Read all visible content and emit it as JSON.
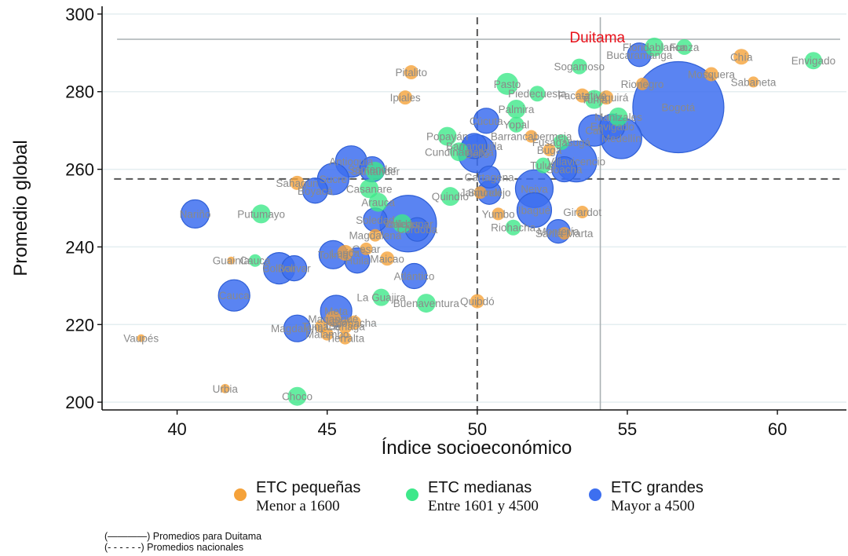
{
  "chart_data": {
    "type": "scatter",
    "title": "",
    "xlabel": "Índice socioeconómico",
    "ylabel": "Promedio global",
    "xlim": [
      37.5,
      62.3
    ],
    "ylim": [
      198,
      302
    ],
    "xticks": [
      "40",
      "45",
      "50",
      "55",
      "60"
    ],
    "yticks": [
      "200",
      "220",
      "240",
      "260",
      "280",
      "300"
    ],
    "grid": "horizontal",
    "reference_lines": {
      "duitama_x": 54.1,
      "duitama_y": 293.5,
      "national_x": 50.0,
      "national_y": 257.5
    },
    "highlight_label": {
      "text": "Duitama",
      "x": 54.0,
      "y": 293.5
    },
    "category_colors": {
      "small": "#f5a23a",
      "medium": "#3ee88a",
      "large": "#3d6ff0"
    },
    "points": [
      {
        "label": "Vaupés",
        "x": 38.8,
        "y": 216.5,
        "cat": "small",
        "r": 5
      },
      {
        "label": "Urbia",
        "x": 41.6,
        "y": 203.5,
        "cat": "small",
        "r": 6
      },
      {
        "label": "Guainía",
        "x": 41.8,
        "y": 236.5,
        "cat": "small",
        "r": 5
      },
      {
        "label": "Cauca",
        "x": 42.6,
        "y": 236.5,
        "cat": "medium",
        "r": 8
      },
      {
        "label": "Putumayo",
        "x": 42.8,
        "y": 248.5,
        "cat": "medium",
        "r": 12
      },
      {
        "label": "Choco",
        "x": 44.0,
        "y": 201.5,
        "cat": "medium",
        "r": 12
      },
      {
        "label": "Sahagún",
        "x": 44.0,
        "y": 256.5,
        "cat": "small",
        "r": 9
      },
      {
        "label": "Lorica",
        "x": 45.6,
        "y": 238.5,
        "cat": "small",
        "r": 10
      },
      {
        "label": "Magangué",
        "x": 45.2,
        "y": 221.5,
        "cat": "small",
        "r": 10
      },
      {
        "label": "Tumaco",
        "x": 44.8,
        "y": 219.5,
        "cat": "small",
        "r": 8
      },
      {
        "label": "Tierralta",
        "x": 45.6,
        "y": 216.5,
        "cat": "small",
        "r": 8
      },
      {
        "label": "Pitalito",
        "x": 47.8,
        "y": 285.0,
        "cat": "small",
        "r": 9
      },
      {
        "label": "Ipiales",
        "x": 47.6,
        "y": 278.5,
        "cat": "small",
        "r": 9
      },
      {
        "label": "Maicao",
        "x": 47.0,
        "y": 237.0,
        "cat": "small",
        "r": 9
      },
      {
        "label": "Magdalena",
        "x": 46.6,
        "y": 243.0,
        "cat": "small",
        "r": 8
      },
      {
        "label": "Cesar",
        "x": 46.3,
        "y": 239.5,
        "cat": "small",
        "r": 8
      },
      {
        "label": "Ciénaga",
        "x": 45.6,
        "y": 219.5,
        "cat": "small",
        "r": 9
      },
      {
        "label": "Riohacha",
        "x": 45.9,
        "y": 220.5,
        "cat": "small",
        "r": 9
      },
      {
        "label": "Buenaventura",
        "x": 48.3,
        "y": 225.5,
        "cat": "medium",
        "r": 12
      },
      {
        "label": "La Guajira",
        "x": 46.8,
        "y": 227.0,
        "cat": "medium",
        "r": 11
      },
      {
        "label": "Quibdó",
        "x": 50.0,
        "y": 226.0,
        "cat": "small",
        "r": 9
      },
      {
        "label": "Malambo",
        "x": 45.0,
        "y": 217.5,
        "cat": "small",
        "r": 8
      },
      {
        "label": "Casanare",
        "x": 46.4,
        "y": 255.0,
        "cat": "medium",
        "r": 12
      },
      {
        "label": "Santander",
        "x": 46.6,
        "y": 259.5,
        "cat": "medium",
        "r": 12
      },
      {
        "label": "Arauca",
        "x": 46.7,
        "y": 251.5,
        "cat": "medium",
        "r": 12
      },
      {
        "label": "Quindío",
        "x": 49.1,
        "y": 253.0,
        "cat": "medium",
        "r": 12
      },
      {
        "label": "Popayán",
        "x": 49.0,
        "y": 268.5,
        "cat": "medium",
        "r": 12
      },
      {
        "label": "Cundinamarca",
        "x": 49.4,
        "y": 264.5,
        "cat": "medium",
        "r": 12
      },
      {
        "label": "Caldas",
        "x": 47.5,
        "y": 246.0,
        "cat": "medium",
        "r": 12
      },
      {
        "label": "Yumbo",
        "x": 50.7,
        "y": 248.5,
        "cat": "small",
        "r": 8
      },
      {
        "label": "Jamundí",
        "x": 50.1,
        "y": 254.0,
        "cat": "small",
        "r": 8
      },
      {
        "label": "Riohacha",
        "x": 51.2,
        "y": 245.0,
        "cat": "medium",
        "r": 10
      },
      {
        "label": "Santa Marta",
        "x": 52.9,
        "y": 243.5,
        "cat": "small",
        "r": 8
      },
      {
        "label": "Girardot",
        "x": 53.5,
        "y": 249.0,
        "cat": "small",
        "r": 8
      },
      {
        "label": "Tuluá",
        "x": 52.2,
        "y": 261.0,
        "cat": "medium",
        "r": 10
      },
      {
        "label": "Buga",
        "x": 52.4,
        "y": 265.0,
        "cat": "small",
        "r": 8
      },
      {
        "label": "Barrancabermeja",
        "x": 51.8,
        "y": 268.5,
        "cat": "small",
        "r": 8
      },
      {
        "label": "Yopal",
        "x": 51.3,
        "y": 271.5,
        "cat": "medium",
        "r": 10
      },
      {
        "label": "Palmira",
        "x": 51.3,
        "y": 275.5,
        "cat": "medium",
        "r": 12
      },
      {
        "label": "Fusagasugá",
        "x": 52.8,
        "y": 267.0,
        "cat": "medium",
        "r": 10
      },
      {
        "label": "Pasto",
        "x": 51.0,
        "y": 282.0,
        "cat": "medium",
        "r": 14
      },
      {
        "label": "Piedecuesta",
        "x": 52.0,
        "y": 279.5,
        "cat": "medium",
        "r": 10
      },
      {
        "label": "Facatativá",
        "x": 53.5,
        "y": 279.0,
        "cat": "small",
        "r": 9
      },
      {
        "label": "Sogamoso",
        "x": 53.4,
        "y": 286.5,
        "cat": "medium",
        "r": 10
      },
      {
        "label": "Zipaquirá",
        "x": 54.3,
        "y": 278.5,
        "cat": "small",
        "r": 9
      },
      {
        "label": "Tunja",
        "x": 53.9,
        "y": 278.0,
        "cat": "medium",
        "r": 12
      },
      {
        "label": "Rionegro",
        "x": 55.5,
        "y": 282.0,
        "cat": "small",
        "r": 8
      },
      {
        "label": "Manizales",
        "x": 54.7,
        "y": 273.5,
        "cat": "medium",
        "r": 12
      },
      {
        "label": "Bucaramanga",
        "x": 55.4,
        "y": 289.5,
        "cat": "large",
        "r": 15
      },
      {
        "label": "Floridablanca",
        "x": 55.9,
        "y": 291.5,
        "cat": "medium",
        "r": 12
      },
      {
        "label": "Funza",
        "x": 56.9,
        "y": 291.5,
        "cat": "medium",
        "r": 10
      },
      {
        "label": "Chía",
        "x": 58.8,
        "y": 289.0,
        "cat": "small",
        "r": 10
      },
      {
        "label": "Mosquera",
        "x": 57.8,
        "y": 284.5,
        "cat": "small",
        "r": 9
      },
      {
        "label": "Sabaneta",
        "x": 59.2,
        "y": 282.5,
        "cat": "small",
        "r": 7
      },
      {
        "label": "Envigado",
        "x": 61.2,
        "y": 288.0,
        "cat": "medium",
        "r": 11
      },
      {
        "label": "Bogotá",
        "x": 56.7,
        "y": 276.0,
        "cat": "large",
        "r": 58
      },
      {
        "label": "Medellín",
        "x": 54.8,
        "y": 268.0,
        "cat": "large",
        "r": 26
      },
      {
        "label": "Cali",
        "x": 53.9,
        "y": 270.0,
        "cat": "large",
        "r": 20
      },
      {
        "label": "Envigado",
        "x": 54.5,
        "y": 271.0,
        "cat": "large",
        "r": 16
      },
      {
        "label": "Villavicencio",
        "x": 53.3,
        "y": 262.0,
        "cat": "large",
        "r": 26
      },
      {
        "label": "Soacha",
        "x": 52.9,
        "y": 260.0,
        "cat": "large",
        "r": 16
      },
      {
        "label": "Ibagué",
        "x": 51.9,
        "y": 249.5,
        "cat": "large",
        "r": 22
      },
      {
        "label": "Neiva",
        "x": 51.9,
        "y": 255.0,
        "cat": "large",
        "r": 24
      },
      {
        "label": "Montería",
        "x": 52.7,
        "y": 244.0,
        "cat": "large",
        "r": 15
      },
      {
        "label": "Sincelejo",
        "x": 50.4,
        "y": 254.0,
        "cat": "large",
        "r": 15
      },
      {
        "label": "Cartagena",
        "x": 50.4,
        "y": 258.0,
        "cat": "large",
        "r": 14
      },
      {
        "label": "Bello",
        "x": 50.0,
        "y": 264.0,
        "cat": "large",
        "r": 24
      },
      {
        "label": "Cúcuta",
        "x": 50.3,
        "y": 272.5,
        "cat": "large",
        "r": 16
      },
      {
        "label": "Barranquilla",
        "x": 49.9,
        "y": 266.0,
        "cat": "large",
        "r": 16
      },
      {
        "label": "Valledupar",
        "x": 47.7,
        "y": 246.0,
        "cat": "large",
        "r": 36
      },
      {
        "label": "Soledad",
        "x": 46.6,
        "y": 247.0,
        "cat": "large",
        "r": 15
      },
      {
        "label": "Córdoba",
        "x": 48.0,
        "y": 244.5,
        "cat": "large",
        "r": 15
      },
      {
        "label": "Antioquia",
        "x": 45.8,
        "y": 262.0,
        "cat": "large",
        "r": 20
      },
      {
        "label": "Sucre",
        "x": 45.2,
        "y": 257.5,
        "cat": "large",
        "r": 20
      },
      {
        "label": "Santander",
        "x": 46.5,
        "y": 260.0,
        "cat": "large",
        "r": 16
      },
      {
        "label": "Boyacá",
        "x": 44.6,
        "y": 254.5,
        "cat": "large",
        "r": 16
      },
      {
        "label": "Nariño",
        "x": 40.6,
        "y": 248.5,
        "cat": "large",
        "r": 18
      },
      {
        "label": "Cauca",
        "x": 41.9,
        "y": 227.5,
        "cat": "large",
        "r": 20
      },
      {
        "label": "Bolívar",
        "x": 43.4,
        "y": 234.5,
        "cat": "large",
        "r": 20
      },
      {
        "label": "Bolívar",
        "x": 43.9,
        "y": 234.5,
        "cat": "large",
        "r": 16
      },
      {
        "label": "Tolima",
        "x": 45.2,
        "y": 238.0,
        "cat": "large",
        "r": 18
      },
      {
        "label": "Huila",
        "x": 46.0,
        "y": 236.5,
        "cat": "large",
        "r": 16
      },
      {
        "label": "Atlántico",
        "x": 47.9,
        "y": 232.5,
        "cat": "large",
        "r": 16
      },
      {
        "label": "Meta",
        "x": 45.3,
        "y": 223.5,
        "cat": "large",
        "r": 20
      },
      {
        "label": "Magdalena",
        "x": 44.0,
        "y": 219.0,
        "cat": "large",
        "r": 17
      }
    ],
    "legend": [
      {
        "name": "ETC pequeñas",
        "desc": "Menor a 1600",
        "cat": "small"
      },
      {
        "name": "ETC medianas",
        "desc": "Entre 1601 y 4500",
        "cat": "medium"
      },
      {
        "name": "ETC grandes",
        "desc": "Mayor a 4500",
        "cat": "large"
      }
    ],
    "notes": [
      "(————) Promedios para Duitama",
      "(- - - - - -) Promedios nacionales"
    ]
  }
}
